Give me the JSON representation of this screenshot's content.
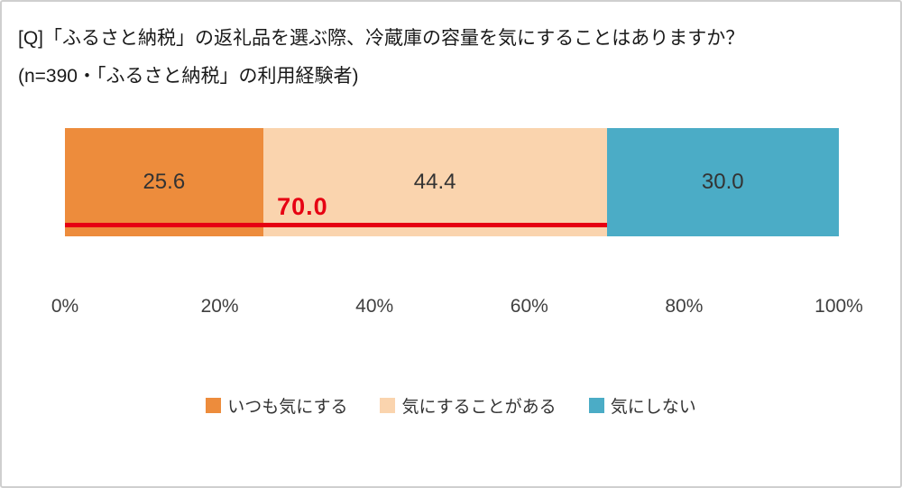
{
  "title": "[Q]「ふるさと納税」の返礼品を選ぶ際、冷蔵庫の容量を気にすることはありますか？",
  "subtitle": "(n=390・「ふるさと納税」の利用経験者)",
  "chart_data": {
    "type": "bar",
    "orientation": "horizontal-stacked",
    "title": "[Q]「ふるさと納税」の返礼品を選ぶ際、冷蔵庫の容量を気にすることはありますか？",
    "subtitle": "(n=390・「ふるさと納税」の利用経験者)",
    "n": 390,
    "series": [
      {
        "name": "いつも気にする",
        "value": 25.6,
        "color": "#ED8C3C"
      },
      {
        "name": "気にすることがある",
        "value": 44.4,
        "color": "#FAD4AE"
      },
      {
        "name": "気にしない",
        "value": 30.0,
        "color": "#4BACC6"
      }
    ],
    "annotation": {
      "label": "70.0",
      "value": 70.0,
      "color": "#E60012"
    },
    "x_ticks": [
      "0%",
      "20%",
      "40%",
      "60%",
      "80%",
      "100%"
    ],
    "xlim": [
      0,
      100
    ],
    "grid": false,
    "legend_position": "bottom",
    "text_color": "#333333"
  }
}
